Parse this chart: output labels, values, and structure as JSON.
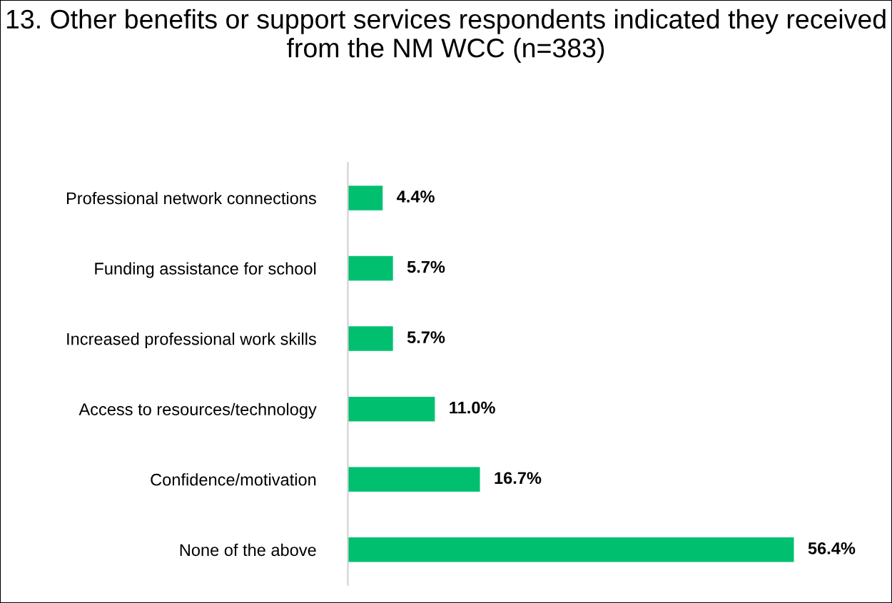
{
  "chart_data": {
    "type": "bar",
    "orientation": "horizontal",
    "title": "13. Other benefits or support services respondents indicated they received from the NM WCC (n=383)",
    "categories": [
      "Professional network connections",
      "Funding assistance for school",
      "Increased professional work skills",
      "Access to resources/technology",
      "Confidence/motivation",
      "None of the above"
    ],
    "values": [
      4.4,
      5.7,
      5.7,
      11.0,
      16.7,
      56.4
    ],
    "value_labels": [
      "4.4%",
      "5.7%",
      "5.7%",
      "11.0%",
      "16.7%",
      "56.4%"
    ],
    "color": "#00c070",
    "grid": false,
    "legend": false,
    "tick_labels": "y"
  }
}
